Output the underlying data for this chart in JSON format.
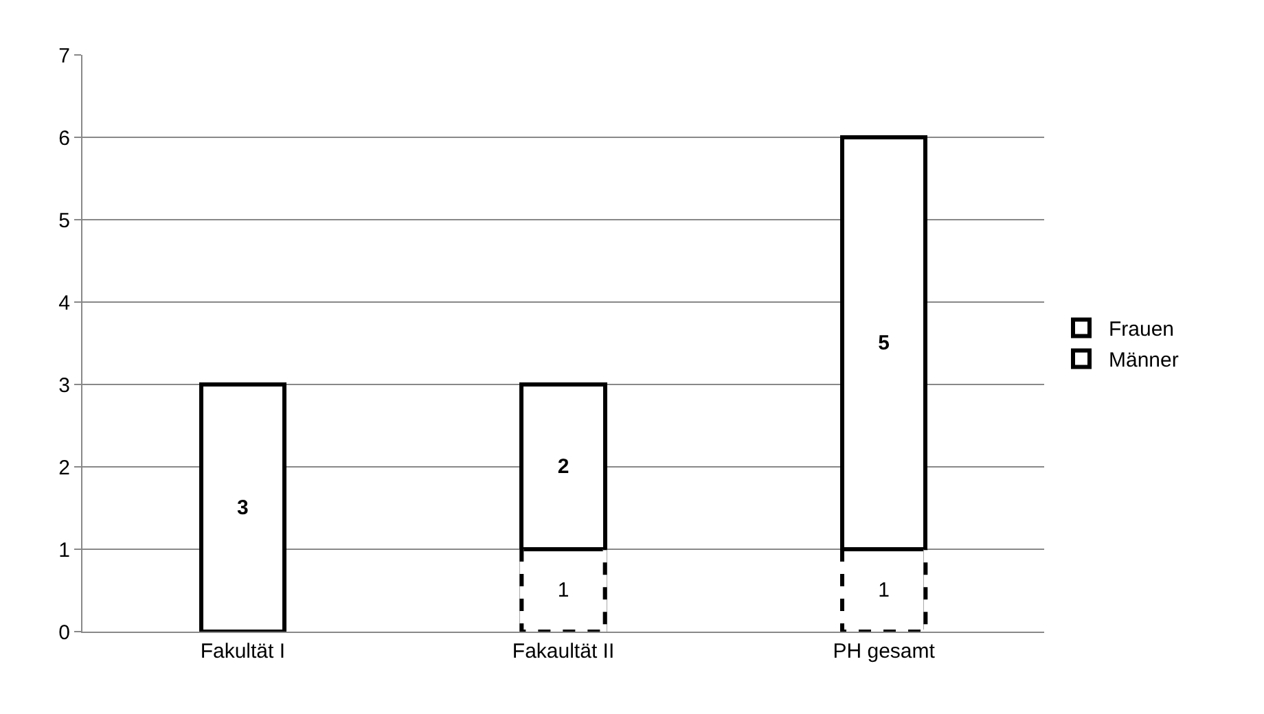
{
  "chart_data": {
    "type": "bar",
    "stacked": true,
    "categories": [
      "Fakultät I",
      "Fakaultät II",
      "PH gesamt"
    ],
    "series": [
      {
        "name": "Männer",
        "color": "#ffffff",
        "line_style": "dashed",
        "values": [
          0,
          1,
          1
        ],
        "value_labels": [
          null,
          "1",
          "1"
        ]
      },
      {
        "name": "Frauen",
        "color": "#ffffff",
        "line_style": "solid",
        "values": [
          3,
          2,
          5
        ],
        "value_labels": [
          "3",
          "2",
          "5"
        ]
      }
    ],
    "ylim": [
      0,
      7
    ],
    "yticks": [
      0,
      1,
      2,
      3,
      4,
      5,
      6,
      7
    ],
    "grid": "y",
    "legend": "right"
  }
}
